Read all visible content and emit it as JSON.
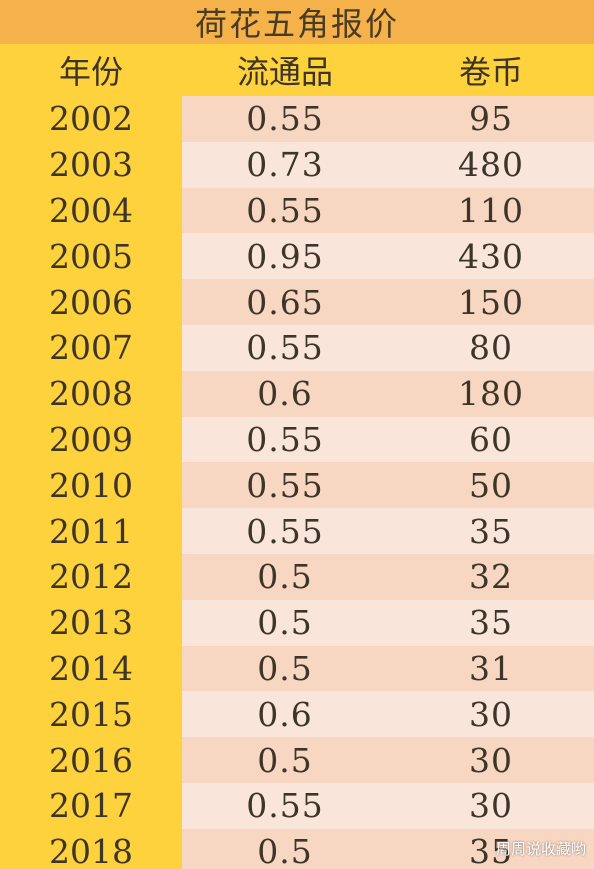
{
  "title": "荷花五角报价",
  "headers": {
    "year": "年份",
    "circulation": "流通品",
    "roll": "卷币"
  },
  "rows": [
    {
      "year": "2002",
      "circulation": "0.55",
      "roll": "95"
    },
    {
      "year": "2003",
      "circulation": "0.73",
      "roll": "480"
    },
    {
      "year": "2004",
      "circulation": "0.55",
      "roll": "110"
    },
    {
      "year": "2005",
      "circulation": "0.95",
      "roll": "430"
    },
    {
      "year": "2006",
      "circulation": "0.65",
      "roll": "150"
    },
    {
      "year": "2007",
      "circulation": "0.55",
      "roll": "80"
    },
    {
      "year": "2008",
      "circulation": "0.6",
      "roll": "180"
    },
    {
      "year": "2009",
      "circulation": "0.55",
      "roll": "60"
    },
    {
      "year": "2010",
      "circulation": "0.55",
      "roll": "50"
    },
    {
      "year": "2011",
      "circulation": "0.55",
      "roll": "35"
    },
    {
      "year": "2012",
      "circulation": "0.5",
      "roll": "32"
    },
    {
      "year": "2013",
      "circulation": "0.5",
      "roll": "35"
    },
    {
      "year": "2014",
      "circulation": "0.5",
      "roll": "31"
    },
    {
      "year": "2015",
      "circulation": "0.6",
      "roll": "30"
    },
    {
      "year": "2016",
      "circulation": "0.5",
      "roll": "30"
    },
    {
      "year": "2017",
      "circulation": "0.55",
      "roll": "30"
    },
    {
      "year": "2018",
      "circulation": "0.5",
      "roll": "35"
    }
  ],
  "watermark": "周周说收藏哟",
  "colors": {
    "title_bg": "#f6b24a",
    "year_col_bg": "#fdd23c",
    "row_dark": "#f7d6c2",
    "row_light": "#fae5db",
    "text": "#3d3528"
  }
}
